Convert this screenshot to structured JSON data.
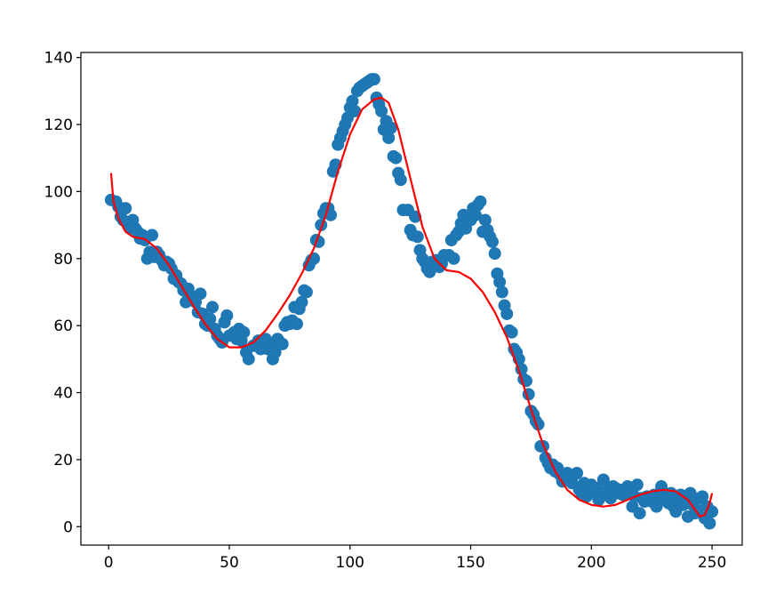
{
  "chart_data": {
    "type": "scatter",
    "title": "",
    "xlabel": "",
    "ylabel": "",
    "xlim": [
      -11.5,
      262.5
    ],
    "ylim": [
      -5.5,
      141.5
    ],
    "xticks": [
      0,
      50,
      100,
      150,
      200,
      250
    ],
    "yticks": [
      0,
      20,
      40,
      60,
      80,
      100,
      120,
      140
    ],
    "grid": false,
    "legend": "none",
    "colors": {
      "points": "#1f77b4",
      "fit": "#ff0000"
    },
    "series": [
      {
        "kind": "scatter",
        "points": [
          [
            1,
            97.5
          ],
          [
            3,
            97
          ],
          [
            4,
            95.5
          ],
          [
            5,
            92.5
          ],
          [
            6,
            91.5
          ],
          [
            7,
            95
          ],
          [
            8,
            90.5
          ],
          [
            9,
            89
          ],
          [
            10,
            91.5
          ],
          [
            11,
            89
          ],
          [
            12,
            88
          ],
          [
            13,
            86
          ],
          [
            14,
            87
          ],
          [
            15,
            85.5
          ],
          [
            16,
            80
          ],
          [
            17,
            82
          ],
          [
            18,
            87
          ],
          [
            19,
            80.5
          ],
          [
            20,
            82
          ],
          [
            21,
            81
          ],
          [
            22,
            79.5
          ],
          [
            23,
            78
          ],
          [
            24,
            79
          ],
          [
            25,
            78.5
          ],
          [
            26,
            77
          ],
          [
            27,
            74
          ],
          [
            28,
            75
          ],
          [
            29,
            73
          ],
          [
            30,
            72.5
          ],
          [
            31,
            70.5
          ],
          [
            32,
            67
          ],
          [
            33,
            71
          ],
          [
            34,
            69
          ],
          [
            35,
            68
          ],
          [
            36,
            67
          ],
          [
            37,
            64
          ],
          [
            38,
            69.5
          ],
          [
            39,
            63.5
          ],
          [
            40,
            60.5
          ],
          [
            41,
            60
          ],
          [
            42,
            62
          ],
          [
            43,
            65.5
          ],
          [
            44,
            59
          ],
          [
            45,
            57
          ],
          [
            46,
            56
          ],
          [
            47,
            55
          ],
          [
            48,
            61
          ],
          [
            49,
            63
          ],
          [
            50,
            57
          ],
          [
            52,
            58
          ],
          [
            53,
            56
          ],
          [
            54,
            59
          ],
          [
            55,
            55.5
          ],
          [
            56,
            58
          ],
          [
            57,
            52
          ],
          [
            58,
            50
          ],
          [
            60,
            54
          ],
          [
            62,
            55.5
          ],
          [
            63,
            53
          ],
          [
            64,
            55
          ],
          [
            65,
            56
          ],
          [
            66,
            53
          ],
          [
            67,
            54
          ],
          [
            68,
            50
          ],
          [
            69,
            52
          ],
          [
            70,
            56
          ],
          [
            71,
            55
          ],
          [
            72,
            54.5
          ],
          [
            73,
            60
          ],
          [
            74,
            61
          ],
          [
            75,
            60.5
          ],
          [
            76,
            61.5
          ],
          [
            77,
            65.5
          ],
          [
            78,
            60.5
          ],
          [
            79,
            65
          ],
          [
            80,
            67
          ],
          [
            81,
            70.5
          ],
          [
            82,
            70
          ],
          [
            83,
            78
          ],
          [
            84,
            79.5
          ],
          [
            85,
            80
          ],
          [
            86,
            85.5
          ],
          [
            87,
            85
          ],
          [
            88,
            90
          ],
          [
            89,
            93.5
          ],
          [
            90,
            95
          ],
          [
            91,
            95
          ],
          [
            92,
            93
          ],
          [
            93,
            106
          ],
          [
            94,
            108
          ],
          [
            95,
            114
          ],
          [
            96,
            116
          ],
          [
            97,
            118
          ],
          [
            98,
            120
          ],
          [
            99,
            122
          ],
          [
            100,
            125
          ],
          [
            101,
            127
          ],
          [
            102,
            124
          ],
          [
            103,
            130
          ],
          [
            104,
            131
          ],
          [
            105,
            131.5
          ],
          [
            106,
            132
          ],
          [
            107,
            132.5
          ],
          [
            108,
            133
          ],
          [
            109,
            133.5
          ],
          [
            110,
            133.5
          ],
          [
            111,
            128
          ],
          [
            112,
            126
          ],
          [
            113,
            124
          ],
          [
            114,
            118.5
          ],
          [
            115,
            121
          ],
          [
            116,
            116
          ],
          [
            117,
            119
          ],
          [
            118,
            110.5
          ],
          [
            119,
            110
          ],
          [
            120,
            105.5
          ],
          [
            121,
            103.5
          ],
          [
            122,
            94.5
          ],
          [
            124,
            94.5
          ],
          [
            125,
            88.5
          ],
          [
            126,
            87
          ],
          [
            127,
            92.5
          ],
          [
            128,
            86.5
          ],
          [
            129,
            82.5
          ],
          [
            130,
            80
          ],
          [
            131,
            79
          ],
          [
            132,
            77
          ],
          [
            133,
            76
          ],
          [
            134,
            79
          ],
          [
            135,
            78
          ],
          [
            136,
            79.5
          ],
          [
            137,
            77.5
          ],
          [
            138,
            78.5
          ],
          [
            139,
            81
          ],
          [
            141,
            81
          ],
          [
            142,
            85.5
          ],
          [
            143,
            80
          ],
          [
            144,
            87
          ],
          [
            145,
            88
          ],
          [
            146,
            90.5
          ],
          [
            147,
            93
          ],
          [
            148,
            89
          ],
          [
            149,
            92.5
          ],
          [
            150,
            91.5
          ],
          [
            151,
            95
          ],
          [
            152,
            93
          ],
          [
            153,
            96
          ],
          [
            154,
            97
          ],
          [
            155,
            88
          ],
          [
            156,
            91.5
          ],
          [
            157,
            88.5
          ],
          [
            158,
            86.5
          ],
          [
            159,
            85
          ],
          [
            160,
            81.5
          ],
          [
            161,
            75.5
          ],
          [
            162,
            73
          ],
          [
            163,
            70
          ],
          [
            164,
            66
          ],
          [
            165,
            63.5
          ],
          [
            166,
            58.5
          ],
          [
            167,
            58
          ],
          [
            168,
            53
          ],
          [
            169,
            52
          ],
          [
            170,
            50
          ],
          [
            171,
            47
          ],
          [
            172,
            44
          ],
          [
            173,
            43.5
          ],
          [
            174,
            39.5
          ],
          [
            175,
            34.5
          ],
          [
            176,
            33.5
          ],
          [
            177,
            31.5
          ],
          [
            178,
            30.5
          ],
          [
            179,
            24
          ],
          [
            180,
            24
          ],
          [
            181,
            20.5
          ],
          [
            182,
            19
          ],
          [
            183,
            17.5
          ],
          [
            184,
            18.5
          ],
          [
            185,
            16.5
          ],
          [
            186,
            17.5
          ],
          [
            187,
            15.5
          ],
          [
            188,
            13.5
          ],
          [
            189,
            14
          ],
          [
            190,
            16
          ],
          [
            191,
            14.5
          ],
          [
            192,
            13
          ],
          [
            193,
            15.5
          ],
          [
            194,
            16
          ],
          [
            195,
            11
          ],
          [
            196,
            10
          ],
          [
            197,
            13
          ],
          [
            198,
            9
          ],
          [
            199,
            11.5
          ],
          [
            200,
            12.5
          ],
          [
            201,
            10.5
          ],
          [
            202,
            11.5
          ],
          [
            203,
            8
          ],
          [
            204,
            9
          ],
          [
            205,
            14
          ],
          [
            206,
            10.5
          ],
          [
            207,
            11
          ],
          [
            208,
            8.5
          ],
          [
            209,
            12
          ],
          [
            210,
            11.5
          ],
          [
            211,
            10
          ],
          [
            212,
            11
          ],
          [
            213,
            9.5
          ],
          [
            214,
            11
          ],
          [
            215,
            12
          ],
          [
            216,
            10
          ],
          [
            217,
            6
          ],
          [
            218,
            9
          ],
          [
            219,
            12.5
          ],
          [
            220,
            4
          ],
          [
            221,
            8.5
          ],
          [
            222,
            7.5
          ],
          [
            223,
            9
          ],
          [
            224,
            8
          ],
          [
            225,
            7.5
          ],
          [
            226,
            9.5
          ],
          [
            227,
            6
          ],
          [
            228,
            7.5
          ],
          [
            229,
            12
          ],
          [
            230,
            10
          ],
          [
            231,
            8.5
          ],
          [
            232,
            7
          ],
          [
            233,
            10
          ],
          [
            234,
            6
          ],
          [
            235,
            4.5
          ],
          [
            236,
            8
          ],
          [
            237,
            9.5
          ],
          [
            238,
            6.5
          ],
          [
            239,
            7
          ],
          [
            240,
            3
          ],
          [
            241,
            10
          ],
          [
            242,
            6.5
          ],
          [
            243,
            4
          ],
          [
            244,
            5
          ],
          [
            245,
            8.5
          ],
          [
            246,
            9
          ],
          [
            247,
            2.5
          ],
          [
            248,
            6
          ],
          [
            249,
            1
          ],
          [
            250,
            4.5
          ]
        ]
      },
      {
        "kind": "line",
        "points": [
          [
            1,
            105.5
          ],
          [
            2,
            97
          ],
          [
            4,
            92
          ],
          [
            7,
            88
          ],
          [
            10,
            86.5
          ],
          [
            15,
            85.8
          ],
          [
            20,
            83
          ],
          [
            25,
            78
          ],
          [
            30,
            72
          ],
          [
            35,
            66
          ],
          [
            40,
            60.5
          ],
          [
            45,
            56
          ],
          [
            50,
            53.5
          ],
          [
            55,
            53.5
          ],
          [
            60,
            55
          ],
          [
            65,
            58.5
          ],
          [
            70,
            63.5
          ],
          [
            75,
            69
          ],
          [
            80,
            75.5
          ],
          [
            85,
            83
          ],
          [
            90,
            93
          ],
          [
            95,
            106
          ],
          [
            100,
            117
          ],
          [
            105,
            124.5
          ],
          [
            110,
            127.5
          ],
          [
            113,
            128
          ],
          [
            116,
            126.5
          ],
          [
            120,
            118.5
          ],
          [
            125,
            104
          ],
          [
            130,
            89.5
          ],
          [
            135,
            80
          ],
          [
            140,
            76.5
          ],
          [
            145,
            76
          ],
          [
            150,
            74
          ],
          [
            155,
            70
          ],
          [
            160,
            64
          ],
          [
            165,
            56.5
          ],
          [
            170,
            46.5
          ],
          [
            175,
            35
          ],
          [
            180,
            24.5
          ],
          [
            185,
            16.5
          ],
          [
            190,
            11
          ],
          [
            195,
            8
          ],
          [
            200,
            6.5
          ],
          [
            205,
            6
          ],
          [
            210,
            6.5
          ],
          [
            215,
            8
          ],
          [
            220,
            9.5
          ],
          [
            225,
            10.5
          ],
          [
            230,
            11
          ],
          [
            235,
            10.5
          ],
          [
            240,
            8
          ],
          [
            243,
            5
          ],
          [
            245,
            3
          ],
          [
            247,
            3.5
          ],
          [
            249,
            7
          ],
          [
            250,
            10
          ]
        ]
      }
    ]
  }
}
